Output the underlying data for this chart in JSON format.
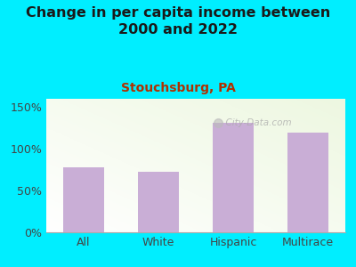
{
  "title": "Change in per capita income between\n2000 and 2022",
  "subtitle": "Stouchsburg, PA",
  "categories": [
    "All",
    "White",
    "Hispanic",
    "Multirace"
  ],
  "values": [
    78,
    73,
    131,
    120
  ],
  "bar_color": "#c9aed6",
  "title_fontsize": 11.5,
  "subtitle_fontsize": 10,
  "title_color": "#1a1a1a",
  "subtitle_color": "#b03000",
  "bg_outer": "#00eeff",
  "ylabel_ticks": [
    0,
    50,
    100,
    150
  ],
  "ylabel_labels": [
    "0%",
    "50%",
    "100%",
    "150%"
  ],
  "ylim": [
    0,
    160
  ],
  "watermark": "City-Data.com",
  "tick_color": "#444444",
  "tick_fontsize": 9
}
